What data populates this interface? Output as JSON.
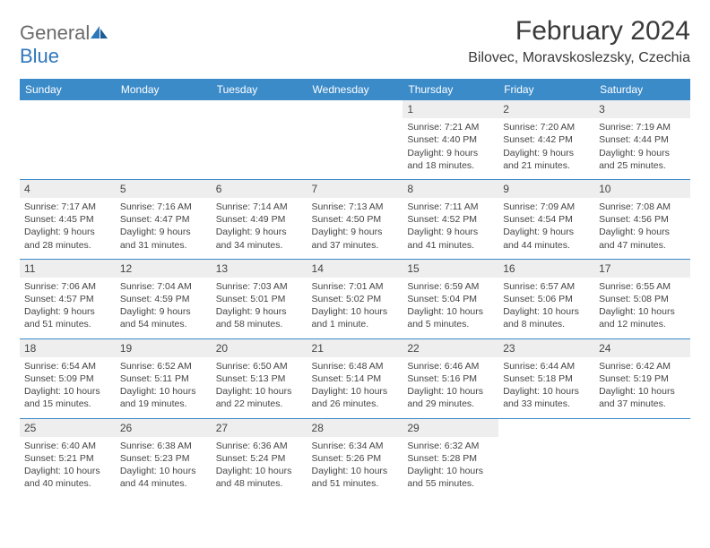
{
  "logo": {
    "general": "General",
    "blue": "Blue"
  },
  "title": "February 2024",
  "location": "Bilovec, Moravskoslezsky, Czechia",
  "colors": {
    "header_bg": "#3b8bc9",
    "header_fg": "#ffffff",
    "daynum_bg": "#eeeeee",
    "logo_blue": "#2f77bb",
    "logo_gray": "#6b6b6b",
    "text": "#444444",
    "separator": "#3b8bc9"
  },
  "weekdays": [
    "Sunday",
    "Monday",
    "Tuesday",
    "Wednesday",
    "Thursday",
    "Friday",
    "Saturday"
  ],
  "weeks": [
    [
      null,
      null,
      null,
      null,
      {
        "n": "1",
        "sunrise": "7:21 AM",
        "sunset": "4:40 PM",
        "daylight": "9 hours and 18 minutes."
      },
      {
        "n": "2",
        "sunrise": "7:20 AM",
        "sunset": "4:42 PM",
        "daylight": "9 hours and 21 minutes."
      },
      {
        "n": "3",
        "sunrise": "7:19 AM",
        "sunset": "4:44 PM",
        "daylight": "9 hours and 25 minutes."
      }
    ],
    [
      {
        "n": "4",
        "sunrise": "7:17 AM",
        "sunset": "4:45 PM",
        "daylight": "9 hours and 28 minutes."
      },
      {
        "n": "5",
        "sunrise": "7:16 AM",
        "sunset": "4:47 PM",
        "daylight": "9 hours and 31 minutes."
      },
      {
        "n": "6",
        "sunrise": "7:14 AM",
        "sunset": "4:49 PM",
        "daylight": "9 hours and 34 minutes."
      },
      {
        "n": "7",
        "sunrise": "7:13 AM",
        "sunset": "4:50 PM",
        "daylight": "9 hours and 37 minutes."
      },
      {
        "n": "8",
        "sunrise": "7:11 AM",
        "sunset": "4:52 PM",
        "daylight": "9 hours and 41 minutes."
      },
      {
        "n": "9",
        "sunrise": "7:09 AM",
        "sunset": "4:54 PM",
        "daylight": "9 hours and 44 minutes."
      },
      {
        "n": "10",
        "sunrise": "7:08 AM",
        "sunset": "4:56 PM",
        "daylight": "9 hours and 47 minutes."
      }
    ],
    [
      {
        "n": "11",
        "sunrise": "7:06 AM",
        "sunset": "4:57 PM",
        "daylight": "9 hours and 51 minutes."
      },
      {
        "n": "12",
        "sunrise": "7:04 AM",
        "sunset": "4:59 PM",
        "daylight": "9 hours and 54 minutes."
      },
      {
        "n": "13",
        "sunrise": "7:03 AM",
        "sunset": "5:01 PM",
        "daylight": "9 hours and 58 minutes."
      },
      {
        "n": "14",
        "sunrise": "7:01 AM",
        "sunset": "5:02 PM",
        "daylight": "10 hours and 1 minute."
      },
      {
        "n": "15",
        "sunrise": "6:59 AM",
        "sunset": "5:04 PM",
        "daylight": "10 hours and 5 minutes."
      },
      {
        "n": "16",
        "sunrise": "6:57 AM",
        "sunset": "5:06 PM",
        "daylight": "10 hours and 8 minutes."
      },
      {
        "n": "17",
        "sunrise": "6:55 AM",
        "sunset": "5:08 PM",
        "daylight": "10 hours and 12 minutes."
      }
    ],
    [
      {
        "n": "18",
        "sunrise": "6:54 AM",
        "sunset": "5:09 PM",
        "daylight": "10 hours and 15 minutes."
      },
      {
        "n": "19",
        "sunrise": "6:52 AM",
        "sunset": "5:11 PM",
        "daylight": "10 hours and 19 minutes."
      },
      {
        "n": "20",
        "sunrise": "6:50 AM",
        "sunset": "5:13 PM",
        "daylight": "10 hours and 22 minutes."
      },
      {
        "n": "21",
        "sunrise": "6:48 AM",
        "sunset": "5:14 PM",
        "daylight": "10 hours and 26 minutes."
      },
      {
        "n": "22",
        "sunrise": "6:46 AM",
        "sunset": "5:16 PM",
        "daylight": "10 hours and 29 minutes."
      },
      {
        "n": "23",
        "sunrise": "6:44 AM",
        "sunset": "5:18 PM",
        "daylight": "10 hours and 33 minutes."
      },
      {
        "n": "24",
        "sunrise": "6:42 AM",
        "sunset": "5:19 PM",
        "daylight": "10 hours and 37 minutes."
      }
    ],
    [
      {
        "n": "25",
        "sunrise": "6:40 AM",
        "sunset": "5:21 PM",
        "daylight": "10 hours and 40 minutes."
      },
      {
        "n": "26",
        "sunrise": "6:38 AM",
        "sunset": "5:23 PM",
        "daylight": "10 hours and 44 minutes."
      },
      {
        "n": "27",
        "sunrise": "6:36 AM",
        "sunset": "5:24 PM",
        "daylight": "10 hours and 48 minutes."
      },
      {
        "n": "28",
        "sunrise": "6:34 AM",
        "sunset": "5:26 PM",
        "daylight": "10 hours and 51 minutes."
      },
      {
        "n": "29",
        "sunrise": "6:32 AM",
        "sunset": "5:28 PM",
        "daylight": "10 hours and 55 minutes."
      },
      null,
      null
    ]
  ],
  "labels": {
    "sunrise": "Sunrise: ",
    "sunset": "Sunset: ",
    "daylight": "Daylight: "
  }
}
